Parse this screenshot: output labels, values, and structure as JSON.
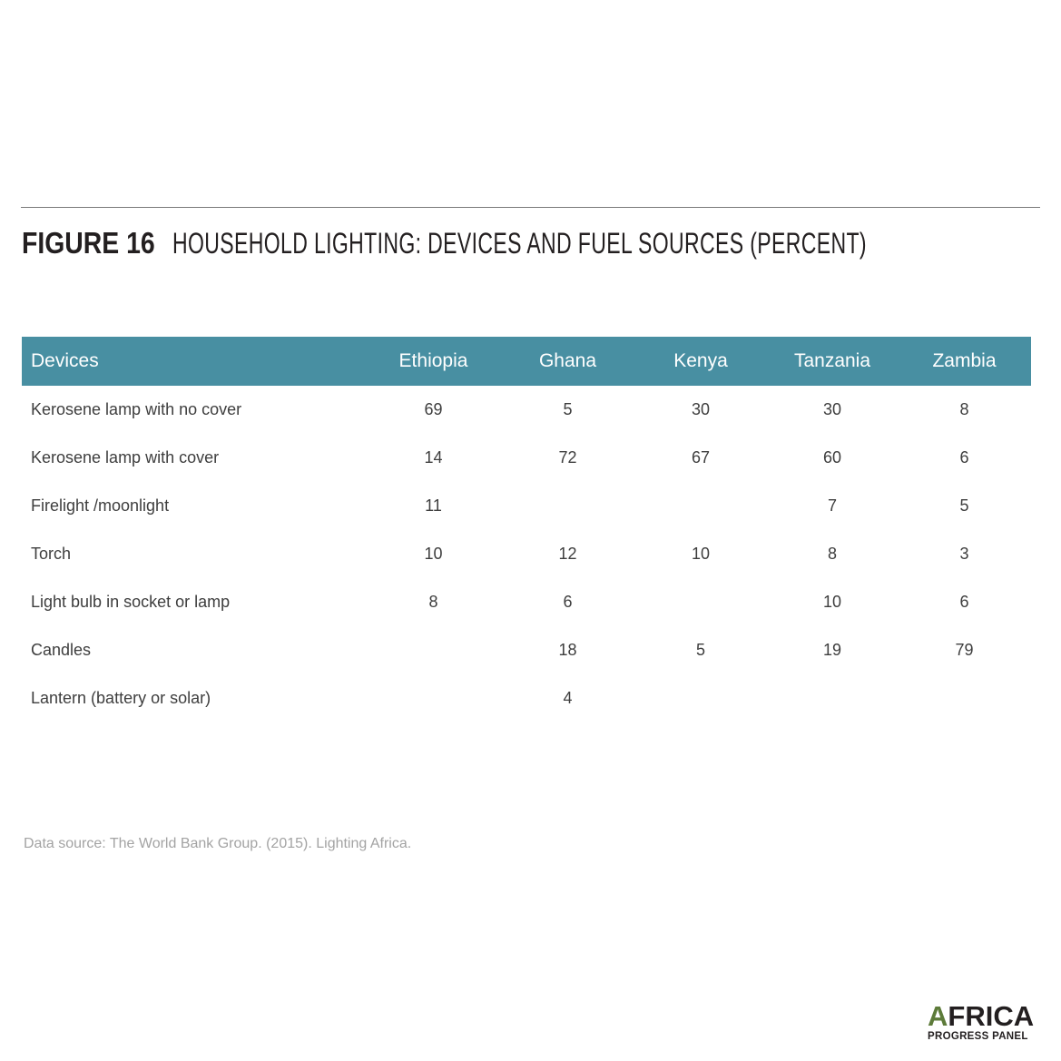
{
  "figure": {
    "label": "FIGURE 16",
    "title": "HOUSEHOLD LIGHTING: DEVICES AND FUEL SOURCES (PERCENT)"
  },
  "chart_data": {
    "type": "table",
    "title": "HOUSEHOLD LIGHTING: DEVICES AND FUEL SOURCES (PERCENT)",
    "columns": [
      "Devices",
      "Ethiopia",
      "Ghana",
      "Kenya",
      "Tanzania",
      "Zambia"
    ],
    "rows": [
      {
        "device": "Kerosene lamp with no cover",
        "values": [
          "69",
          "5",
          "30",
          "30",
          "8"
        ]
      },
      {
        "device": "Kerosene lamp with cover",
        "values": [
          "14",
          "72",
          "67",
          "60",
          "6"
        ]
      },
      {
        "device": "Firelight /moonlight",
        "values": [
          "11",
          "",
          "",
          "7",
          "5"
        ]
      },
      {
        "device": "Torch",
        "values": [
          "10",
          "12",
          "10",
          "8",
          "3"
        ]
      },
      {
        "device": "Light bulb in socket or lamp",
        "values": [
          "8",
          "6",
          "",
          "10",
          "6"
        ]
      },
      {
        "device": "Candles",
        "values": [
          "",
          "18",
          "5",
          "19",
          "79"
        ]
      },
      {
        "device": "Lantern (battery or solar)",
        "values": [
          "",
          "4",
          "",
          "",
          ""
        ]
      }
    ],
    "header_color": "#488fa2"
  },
  "source": "Data source: The World Bank Group. (2015). Lighting Africa.",
  "logo": {
    "a_letter": "A",
    "rest": "FRICA",
    "subtitle": "PROGRESS PANEL",
    "accent_color": "#5d7b3a"
  }
}
